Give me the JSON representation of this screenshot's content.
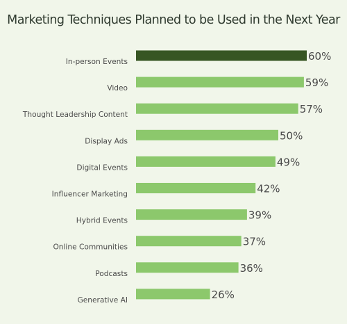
{
  "chart_data": {
    "type": "bar",
    "orientation": "horizontal",
    "title": "Marketing Techniques Planned to be Used in the Next Year",
    "categories": [
      "In-person Events",
      "Video",
      "Thought Leadership Content",
      "Display Ads",
      "Digital Events",
      "Influencer Marketing",
      "Hybrid Events",
      "Online Communities",
      "Podcasts",
      "Generative AI"
    ],
    "values": [
      60,
      59,
      57,
      50,
      49,
      42,
      39,
      37,
      36,
      26
    ],
    "value_labels": [
      "60%",
      "59%",
      "57%",
      "50%",
      "49%",
      "42%",
      "39%",
      "37%",
      "36%",
      "26%"
    ],
    "unit": "%",
    "xlim": [
      0,
      60
    ],
    "grid": false,
    "legend": "none",
    "colors": {
      "highlight": "#375623",
      "bar": "#8cc86c",
      "background": "#f1f6ea"
    },
    "highlight_index": 0
  }
}
